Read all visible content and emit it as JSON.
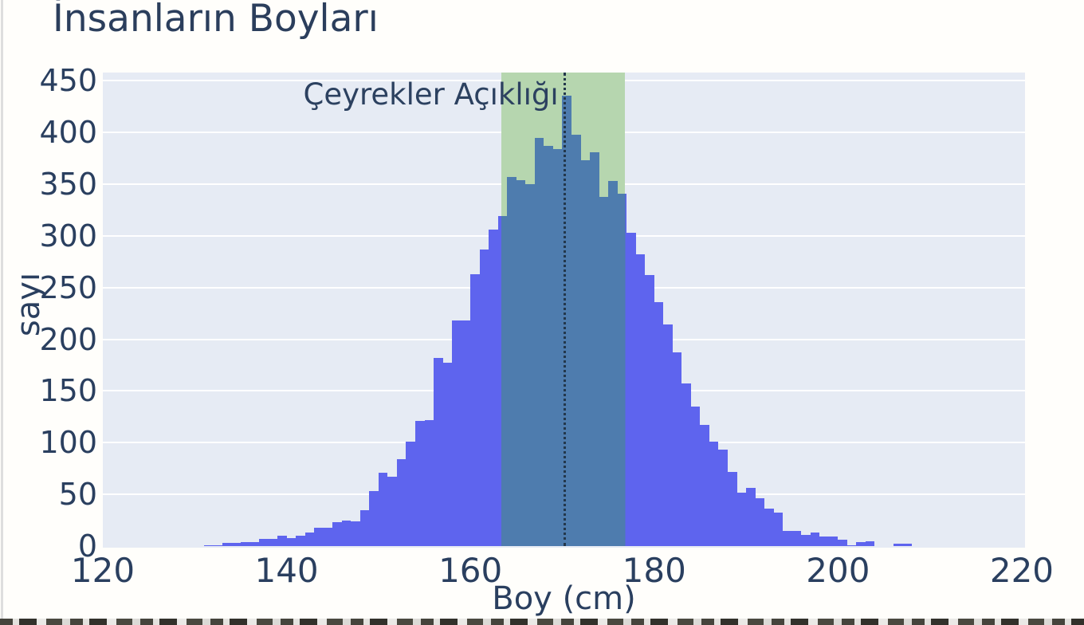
{
  "page": {
    "background_color": "#fffefb"
  },
  "chart_data": {
    "type": "bar",
    "subtype": "histogram",
    "title": "İnsanların Boyları",
    "xlabel": "Boy (cm)",
    "ylabel": "sayı",
    "annotation": {
      "text": "Çeyrekler Açıklığı",
      "x": 155.7,
      "y": 452
    },
    "xlim": [
      120,
      220.35
    ],
    "ylim": [
      0,
      458
    ],
    "x_ticks": [
      120,
      140,
      160,
      180,
      200,
      220
    ],
    "y_ticks": [
      0,
      50,
      100,
      150,
      200,
      250,
      300,
      350,
      400,
      450
    ],
    "grid": true,
    "legend": false,
    "bin_width": 1,
    "bin_start": 131,
    "counts": [
      1,
      1,
      3,
      3,
      4,
      4,
      7,
      7,
      10,
      8,
      10,
      13,
      18,
      18,
      23,
      25,
      24,
      35,
      53,
      71,
      67,
      84,
      101,
      121,
      122,
      182,
      177,
      218,
      218,
      263,
      287,
      306,
      319,
      357,
      354,
      350,
      395,
      387,
      384,
      436,
      398,
      373,
      381,
      338,
      353,
      341,
      303,
      282,
      262,
      236,
      214,
      187,
      157,
      135,
      117,
      101,
      93,
      72,
      52,
      56,
      46,
      36,
      32,
      15,
      15,
      11,
      13,
      9,
      9,
      6,
      1,
      4,
      5,
      0,
      0,
      2,
      2
    ],
    "iqr_region": {
      "x0": 163.35,
      "x1": 176.85
    },
    "median_line": {
      "x": 170.2
    },
    "colors": {
      "bar": "#5e64ee",
      "bar_in_iqr": "#4e7cae",
      "iqr_fill": "#b6d6af",
      "plot_background": "#e6ebf4",
      "gridline": "#ffffff",
      "text": "#2a3f5f",
      "median_line": "#23374b"
    }
  }
}
